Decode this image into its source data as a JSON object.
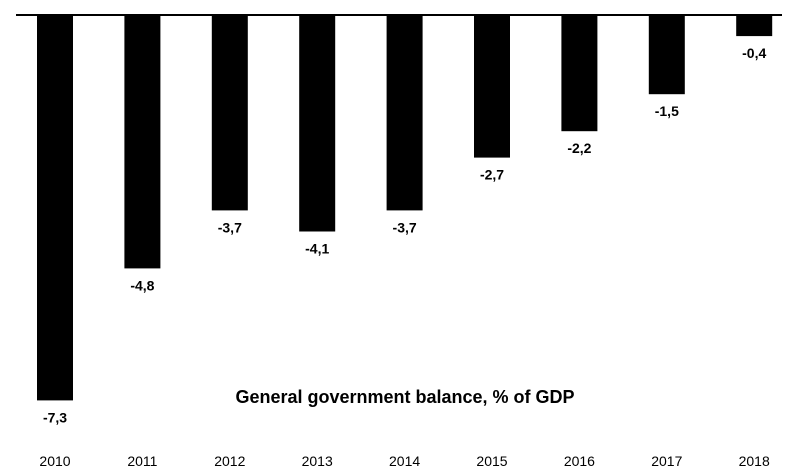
{
  "chart_data": {
    "type": "bar",
    "title": "General government balance, % of GDP",
    "categories": [
      "2010",
      "2011",
      "2012",
      "2013",
      "2014",
      "2015",
      "2016",
      "2017",
      "2018"
    ],
    "values": [
      -7.3,
      -4.8,
      -3.7,
      -4.1,
      -3.7,
      -2.7,
      -2.2,
      -1.5,
      -0.4
    ],
    "data_labels": [
      "-7,3",
      "-4,8",
      "-3,7",
      "-4,1",
      "-3,7",
      "-2,7",
      "-2,2",
      "-1,5",
      "-0,4"
    ],
    "xlabel": "",
    "ylabel": "",
    "ylim": [
      -7.3,
      0
    ],
    "grid": false,
    "legend": "none",
    "bar_color": "#000000"
  }
}
